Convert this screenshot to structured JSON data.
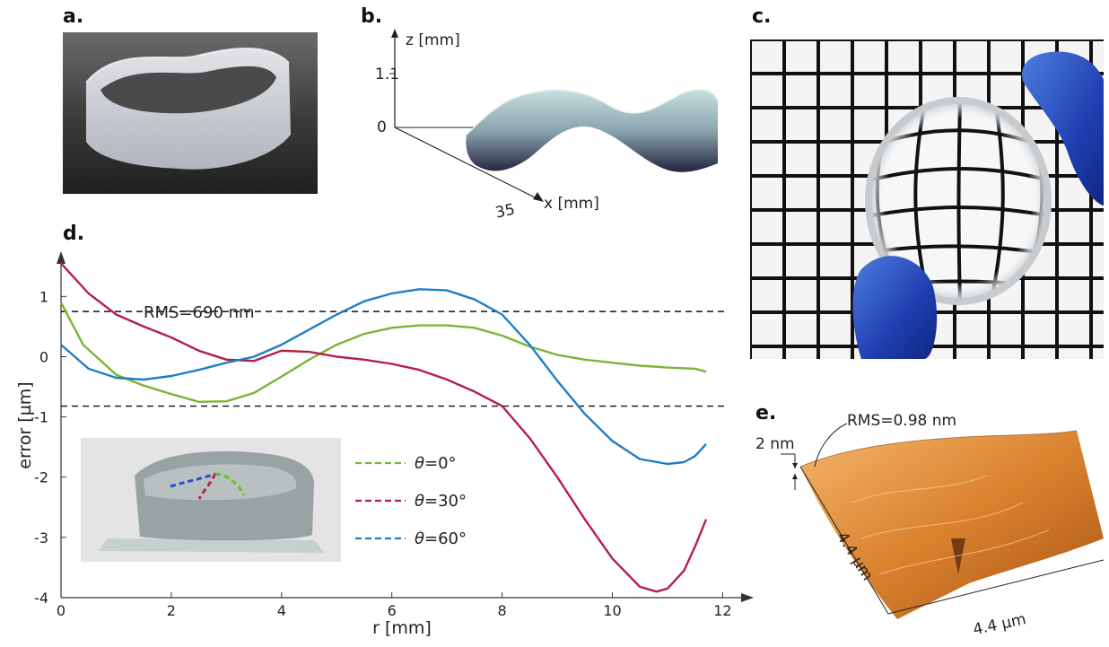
{
  "panels": {
    "a": "a.",
    "b": "b.",
    "c": "c.",
    "d": "d.",
    "e": "e."
  },
  "panel_b": {
    "z_label": "z [mm]",
    "x_label": "x [mm]",
    "z_ticks": [
      "1.1",
      "0"
    ],
    "x_tick": "35"
  },
  "panel_e": {
    "rms_label": "RMS=0.98 nm",
    "scale_label": "2 nm",
    "axis_left": "4.4 µm",
    "axis_bottom": "4.4 µm"
  },
  "chart_data": {
    "type": "line",
    "title": "",
    "xlabel": "r [mm]",
    "ylabel": "error [µm]",
    "xlim": [
      0,
      12.4
    ],
    "ylim": [
      -4,
      1.75
    ],
    "x_ticks": [
      0,
      2,
      4,
      6,
      8,
      10,
      12
    ],
    "y_ticks": [
      1,
      0,
      -1,
      -2,
      -3,
      -4
    ],
    "grid": false,
    "annotation": "RMS=690 nm",
    "rms_lines": [
      0.75,
      -0.82
    ],
    "legend_position": "center-left",
    "colors": {
      "green": "#7ab534",
      "red": "#b41f47",
      "blue": "#1f7ec8"
    },
    "series": [
      {
        "name": "θ=0°",
        "legend_symbol": "θ",
        "legend_rest": "=0°",
        "color": "#7ab534",
        "x": [
          0,
          0.4,
          1.0,
          1.5,
          2.0,
          2.5,
          3.0,
          3.5,
          4.0,
          4.5,
          5.0,
          5.5,
          6.0,
          6.5,
          7.0,
          7.5,
          8.0,
          8.5,
          9.0,
          9.5,
          10.0,
          10.5,
          11.0,
          11.5,
          11.7
        ],
        "y": [
          0.9,
          0.2,
          -0.3,
          -0.48,
          -0.62,
          -0.75,
          -0.74,
          -0.6,
          -0.33,
          -0.05,
          0.2,
          0.38,
          0.48,
          0.52,
          0.52,
          0.48,
          0.35,
          0.17,
          0.03,
          -0.05,
          -0.1,
          -0.15,
          -0.18,
          -0.2,
          -0.25
        ]
      },
      {
        "name": "θ=30°",
        "legend_symbol": "θ",
        "legend_rest": "=30°",
        "color": "#b41f47",
        "x": [
          0,
          0.5,
          1.0,
          1.5,
          2.0,
          2.5,
          3.0,
          3.5,
          4.0,
          4.5,
          5.0,
          5.5,
          6.0,
          6.5,
          7.0,
          7.5,
          8.0,
          8.5,
          9.0,
          9.5,
          10.0,
          10.5,
          10.8,
          11.0,
          11.3,
          11.5,
          11.7
        ],
        "y": [
          1.55,
          1.05,
          0.7,
          0.5,
          0.32,
          0.1,
          -0.05,
          -0.07,
          0.1,
          0.08,
          0.0,
          -0.05,
          -0.12,
          -0.22,
          -0.38,
          -0.58,
          -0.82,
          -1.35,
          -2.0,
          -2.7,
          -3.35,
          -3.82,
          -3.9,
          -3.85,
          -3.55,
          -3.15,
          -2.7
        ]
      },
      {
        "name": "θ=60°",
        "legend_symbol": "θ",
        "legend_rest": "=60°",
        "color": "#1f7ec8",
        "x": [
          0,
          0.5,
          1.0,
          1.5,
          2.0,
          2.5,
          3.0,
          3.5,
          4.0,
          4.5,
          5.0,
          5.5,
          6.0,
          6.5,
          7.0,
          7.5,
          8.0,
          8.5,
          9.0,
          9.5,
          10.0,
          10.5,
          11.0,
          11.3,
          11.5,
          11.7
        ],
        "y": [
          0.2,
          -0.2,
          -0.35,
          -0.38,
          -0.32,
          -0.22,
          -0.1,
          0.0,
          0.2,
          0.45,
          0.7,
          0.92,
          1.05,
          1.12,
          1.1,
          0.95,
          0.7,
          0.2,
          -0.4,
          -0.95,
          -1.4,
          -1.7,
          -1.78,
          -1.75,
          -1.65,
          -1.45
        ]
      }
    ]
  }
}
